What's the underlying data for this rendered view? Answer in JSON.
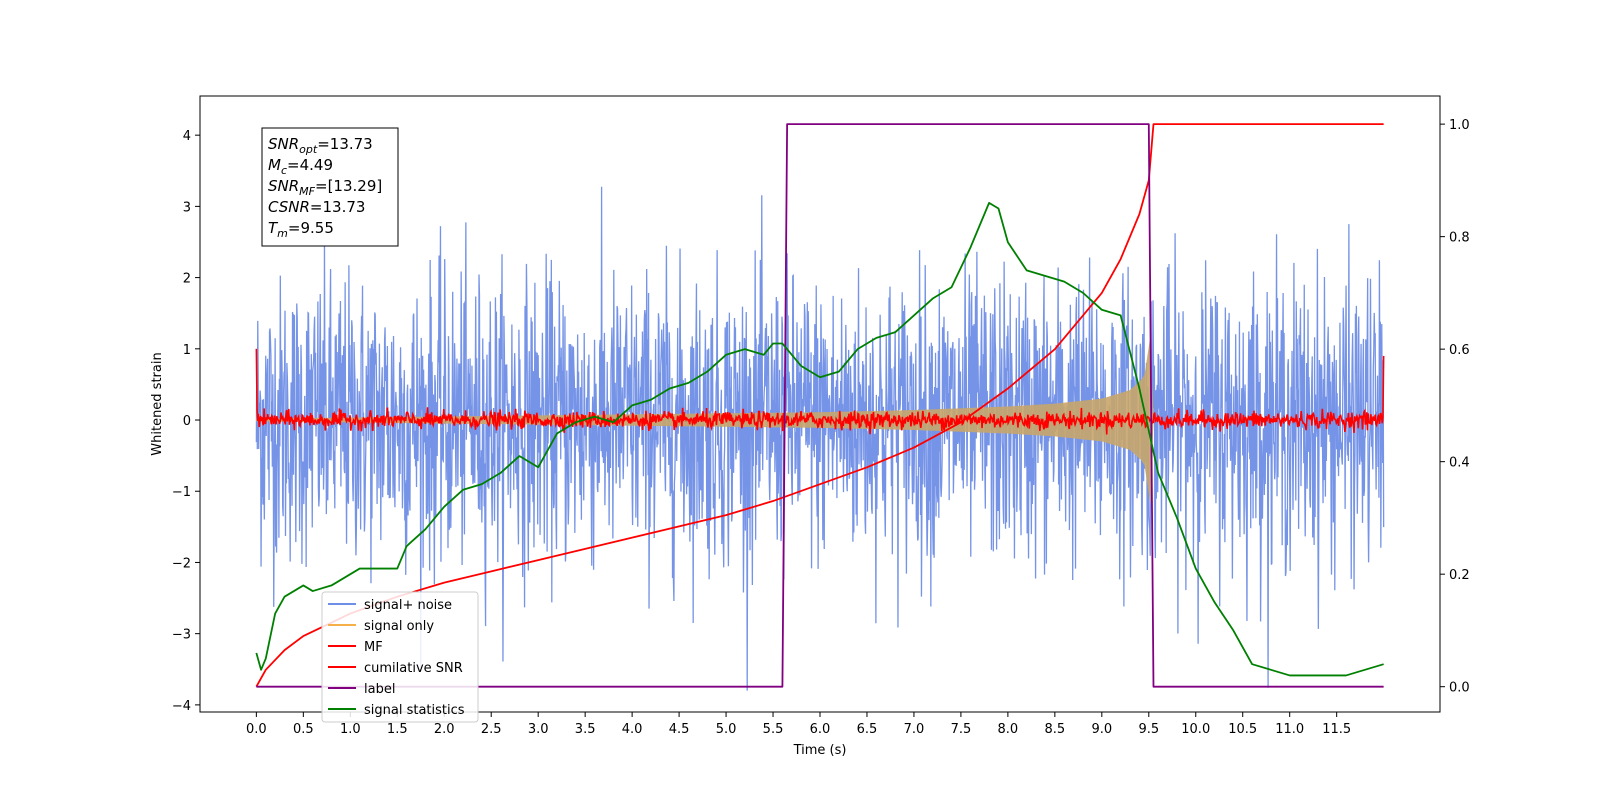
{
  "chart_data": {
    "type": "line",
    "xlabel": "Time (s)",
    "ylabel": "Whitened strain",
    "xlim": [
      -0.6,
      12.6
    ],
    "ylim": [
      -4.1,
      4.55
    ],
    "y2lim": [
      -0.045,
      1.05
    ],
    "x_ticks": [
      "0.0",
      "0.5",
      "1.0",
      "1.5",
      "2.0",
      "2.5",
      "3.0",
      "3.5",
      "4.0",
      "4.5",
      "5.0",
      "5.5",
      "6.0",
      "6.5",
      "7.0",
      "7.5",
      "8.0",
      "8.5",
      "9.0",
      "9.5",
      "10.0",
      "10.5",
      "11.0",
      "11.5"
    ],
    "y_ticks": [
      "4",
      "3",
      "2",
      "1",
      "0",
      "−1",
      "−2",
      "−3",
      "−4"
    ],
    "y2_ticks": [
      "1.0",
      "0.8",
      "0.6",
      "0.4",
      "0.2",
      "0.0"
    ],
    "annotation": {
      "lines": [
        {
          "base": "SNR",
          "sub": "opt",
          "value": "=13.73"
        },
        {
          "base": "M",
          "sub": "c",
          "value": "=4.49"
        },
        {
          "base": "SNR",
          "sub": "MF",
          "value": "=[13.29]"
        },
        {
          "base": "CSNR",
          "sub": "",
          "value": "=13.73"
        },
        {
          "base": "T",
          "sub": "m",
          "value": "=9.55"
        }
      ]
    },
    "legend": {
      "position": "lower-left",
      "entries": [
        {
          "label": "signal+ noise",
          "color": "#6f8ee6"
        },
        {
          "label": "signal only",
          "color": "#f5b04a"
        },
        {
          "label": "MF",
          "color": "#ff0000"
        },
        {
          "label": "cumilative SNR",
          "color": "#ff0000"
        },
        {
          "label": "label",
          "color": "#800080"
        },
        {
          "label": "signal statistics",
          "color": "#008000"
        }
      ]
    },
    "series": [
      {
        "name": "signal+ noise",
        "axis": "left",
        "color": "#6f8ee6",
        "t_start": 0.0,
        "t_end": 12.0,
        "sigma": 1.0
      },
      {
        "name": "signal only",
        "axis": "left",
        "color": "#f5b04a",
        "t_start": 0.0,
        "t_end": 9.55,
        "envelope": [
          [
            0.0,
            0.02
          ],
          [
            2.0,
            0.05
          ],
          [
            4.0,
            0.08
          ],
          [
            6.0,
            0.11
          ],
          [
            7.0,
            0.14
          ],
          [
            8.0,
            0.19
          ],
          [
            8.5,
            0.23
          ],
          [
            9.0,
            0.3
          ],
          [
            9.3,
            0.42
          ],
          [
            9.45,
            0.6
          ],
          [
            9.52,
            1.2
          ],
          [
            9.55,
            0.0
          ]
        ]
      },
      {
        "name": "MF",
        "axis": "left",
        "color": "#ff0000",
        "t_start": 0.0,
        "t_end": 12.0,
        "sigma": 0.06,
        "start_value": 1.0,
        "end_value": 0.9
      },
      {
        "name": "cumilative SNR",
        "axis": "right",
        "color": "#ff0000",
        "x": [
          0.0,
          0.1,
          0.3,
          0.5,
          1.0,
          1.5,
          2.0,
          2.5,
          3.0,
          3.5,
          4.0,
          4.5,
          5.0,
          5.5,
          6.0,
          6.5,
          7.0,
          7.5,
          8.0,
          8.5,
          9.0,
          9.2,
          9.4,
          9.5,
          9.55,
          12.0
        ],
        "y": [
          0.0,
          0.03,
          0.065,
          0.09,
          0.13,
          0.16,
          0.185,
          0.205,
          0.225,
          0.245,
          0.265,
          0.285,
          0.305,
          0.33,
          0.36,
          0.39,
          0.425,
          0.47,
          0.53,
          0.6,
          0.7,
          0.76,
          0.84,
          0.9,
          1.0,
          1.0
        ]
      },
      {
        "name": "label",
        "axis": "right",
        "color": "#800080",
        "x": [
          0.0,
          5.6,
          5.65,
          9.5,
          9.55,
          12.0
        ],
        "y": [
          0.0,
          0.0,
          1.0,
          1.0,
          0.0,
          0.0
        ]
      },
      {
        "name": "signal statistics",
        "axis": "right",
        "color": "#008000",
        "x": [
          0.0,
          0.05,
          0.1,
          0.2,
          0.3,
          0.5,
          0.6,
          0.8,
          1.0,
          1.1,
          1.3,
          1.5,
          1.6,
          1.8,
          2.0,
          2.2,
          2.4,
          2.6,
          2.8,
          3.0,
          3.2,
          3.4,
          3.6,
          3.8,
          4.0,
          4.2,
          4.4,
          4.6,
          4.8,
          5.0,
          5.2,
          5.4,
          5.5,
          5.6,
          5.8,
          6.0,
          6.2,
          6.4,
          6.6,
          6.8,
          7.0,
          7.2,
          7.4,
          7.6,
          7.8,
          7.9,
          8.0,
          8.2,
          8.4,
          8.6,
          8.8,
          9.0,
          9.2,
          9.4,
          9.6,
          9.8,
          10.0,
          10.2,
          10.4,
          10.6,
          10.8,
          11.0,
          11.2,
          11.4,
          11.6,
          11.8,
          12.0
        ],
        "y": [
          0.06,
          0.03,
          0.05,
          0.13,
          0.16,
          0.18,
          0.17,
          0.18,
          0.2,
          0.21,
          0.21,
          0.21,
          0.25,
          0.28,
          0.32,
          0.35,
          0.36,
          0.38,
          0.41,
          0.39,
          0.45,
          0.47,
          0.48,
          0.47,
          0.5,
          0.51,
          0.53,
          0.54,
          0.56,
          0.59,
          0.6,
          0.59,
          0.61,
          0.61,
          0.57,
          0.55,
          0.56,
          0.6,
          0.62,
          0.63,
          0.66,
          0.69,
          0.71,
          0.78,
          0.86,
          0.85,
          0.79,
          0.74,
          0.73,
          0.72,
          0.7,
          0.67,
          0.66,
          0.53,
          0.38,
          0.3,
          0.21,
          0.15,
          0.1,
          0.04,
          0.03,
          0.02,
          0.02,
          0.02,
          0.02,
          0.03,
          0.04
        ]
      }
    ]
  }
}
